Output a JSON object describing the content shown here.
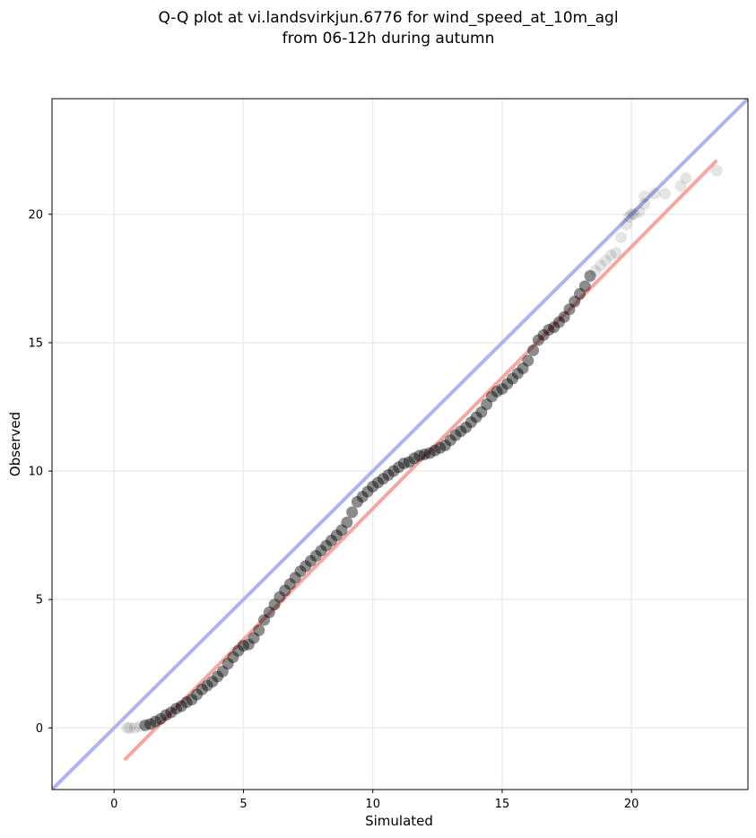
{
  "chart_data": {
    "type": "scatter",
    "title_line1": "Q-Q plot at vi.landsvirkjun.6776 for wind_speed_at_10m_agl",
    "title_line2": "from 06-12h during autumn",
    "xlabel": "Simulated",
    "ylabel": "Observed",
    "xlim": [
      -2.4,
      24.5
    ],
    "ylim": [
      -2.4,
      24.5
    ],
    "x_ticks": [
      0,
      5,
      10,
      15,
      20
    ],
    "y_ticks": [
      0,
      5,
      10,
      15,
      20
    ],
    "grid": true,
    "colors": {
      "points": "#000000",
      "identity_line": "#aab0f0",
      "fit_line": "#f5a3a3",
      "grid": "#ececec"
    },
    "reference_lines": [
      {
        "kind": "identity",
        "x": [
          -2.4,
          24.5
        ],
        "y": [
          -2.4,
          24.5
        ]
      },
      {
        "kind": "fit",
        "x": [
          0.4,
          23.3
        ],
        "y": [
          -1.25,
          22.1
        ]
      }
    ],
    "series": [
      {
        "x": [
          0.5,
          0.6,
          0.8,
          1.0,
          1.2,
          1.4,
          1.6,
          1.8,
          2.0,
          2.2,
          2.4,
          2.6,
          2.8,
          3.0,
          3.2,
          3.4,
          3.6,
          3.8,
          4.0,
          4.2,
          4.4,
          4.6,
          4.8,
          5.0,
          5.2,
          5.4,
          5.6,
          5.8,
          6.0,
          6.2,
          6.4,
          6.6,
          6.8,
          7.0,
          7.2,
          7.4,
          7.6,
          7.8,
          8.0,
          8.2,
          8.4,
          8.6,
          8.8,
          9.0,
          9.2,
          9.4,
          9.6,
          9.8,
          10.0,
          10.2,
          10.4,
          10.6,
          10.8,
          11.0,
          11.2,
          11.4,
          11.6,
          11.8,
          12.0,
          12.2,
          12.4,
          12.6,
          12.8,
          13.0,
          13.2,
          13.4,
          13.6,
          13.8,
          14.0,
          14.2,
          14.4,
          14.6,
          14.8,
          15.0,
          15.2,
          15.4,
          15.6,
          15.8,
          16.0,
          16.2,
          16.4,
          16.6,
          16.8,
          17.0,
          17.2,
          17.4,
          17.6,
          17.8,
          18.0,
          18.2,
          18.4,
          18.6,
          18.8,
          19.0,
          19.2,
          19.4,
          19.6,
          19.8,
          19.9,
          20.0,
          20.1,
          20.3,
          20.5,
          20.5,
          20.9,
          21.3,
          21.9,
          22.1,
          23.3
        ],
        "y": [
          0.0,
          0.0,
          0.0,
          0.05,
          0.1,
          0.15,
          0.25,
          0.35,
          0.5,
          0.6,
          0.75,
          0.85,
          1.0,
          1.1,
          1.3,
          1.5,
          1.65,
          1.8,
          2.0,
          2.2,
          2.5,
          2.75,
          3.0,
          3.2,
          3.25,
          3.5,
          3.8,
          4.2,
          4.5,
          4.8,
          5.1,
          5.35,
          5.6,
          5.85,
          6.1,
          6.3,
          6.5,
          6.7,
          6.9,
          7.1,
          7.3,
          7.5,
          7.7,
          8.0,
          8.4,
          8.8,
          9.0,
          9.2,
          9.4,
          9.55,
          9.7,
          9.85,
          10.0,
          10.15,
          10.3,
          10.35,
          10.5,
          10.6,
          10.65,
          10.7,
          10.8,
          10.9,
          11.0,
          11.2,
          11.4,
          11.55,
          11.7,
          11.9,
          12.1,
          12.3,
          12.6,
          12.9,
          13.1,
          13.2,
          13.4,
          13.6,
          13.8,
          14.0,
          14.3,
          14.7,
          15.1,
          15.3,
          15.5,
          15.6,
          15.8,
          16.0,
          16.3,
          16.6,
          16.9,
          17.2,
          17.6,
          17.8,
          18.0,
          18.2,
          18.4,
          18.5,
          19.1,
          19.6,
          19.9,
          20.0,
          20.0,
          20.1,
          20.4,
          20.7,
          20.8,
          20.8,
          21.1,
          21.4,
          21.7
        ]
      }
    ]
  }
}
